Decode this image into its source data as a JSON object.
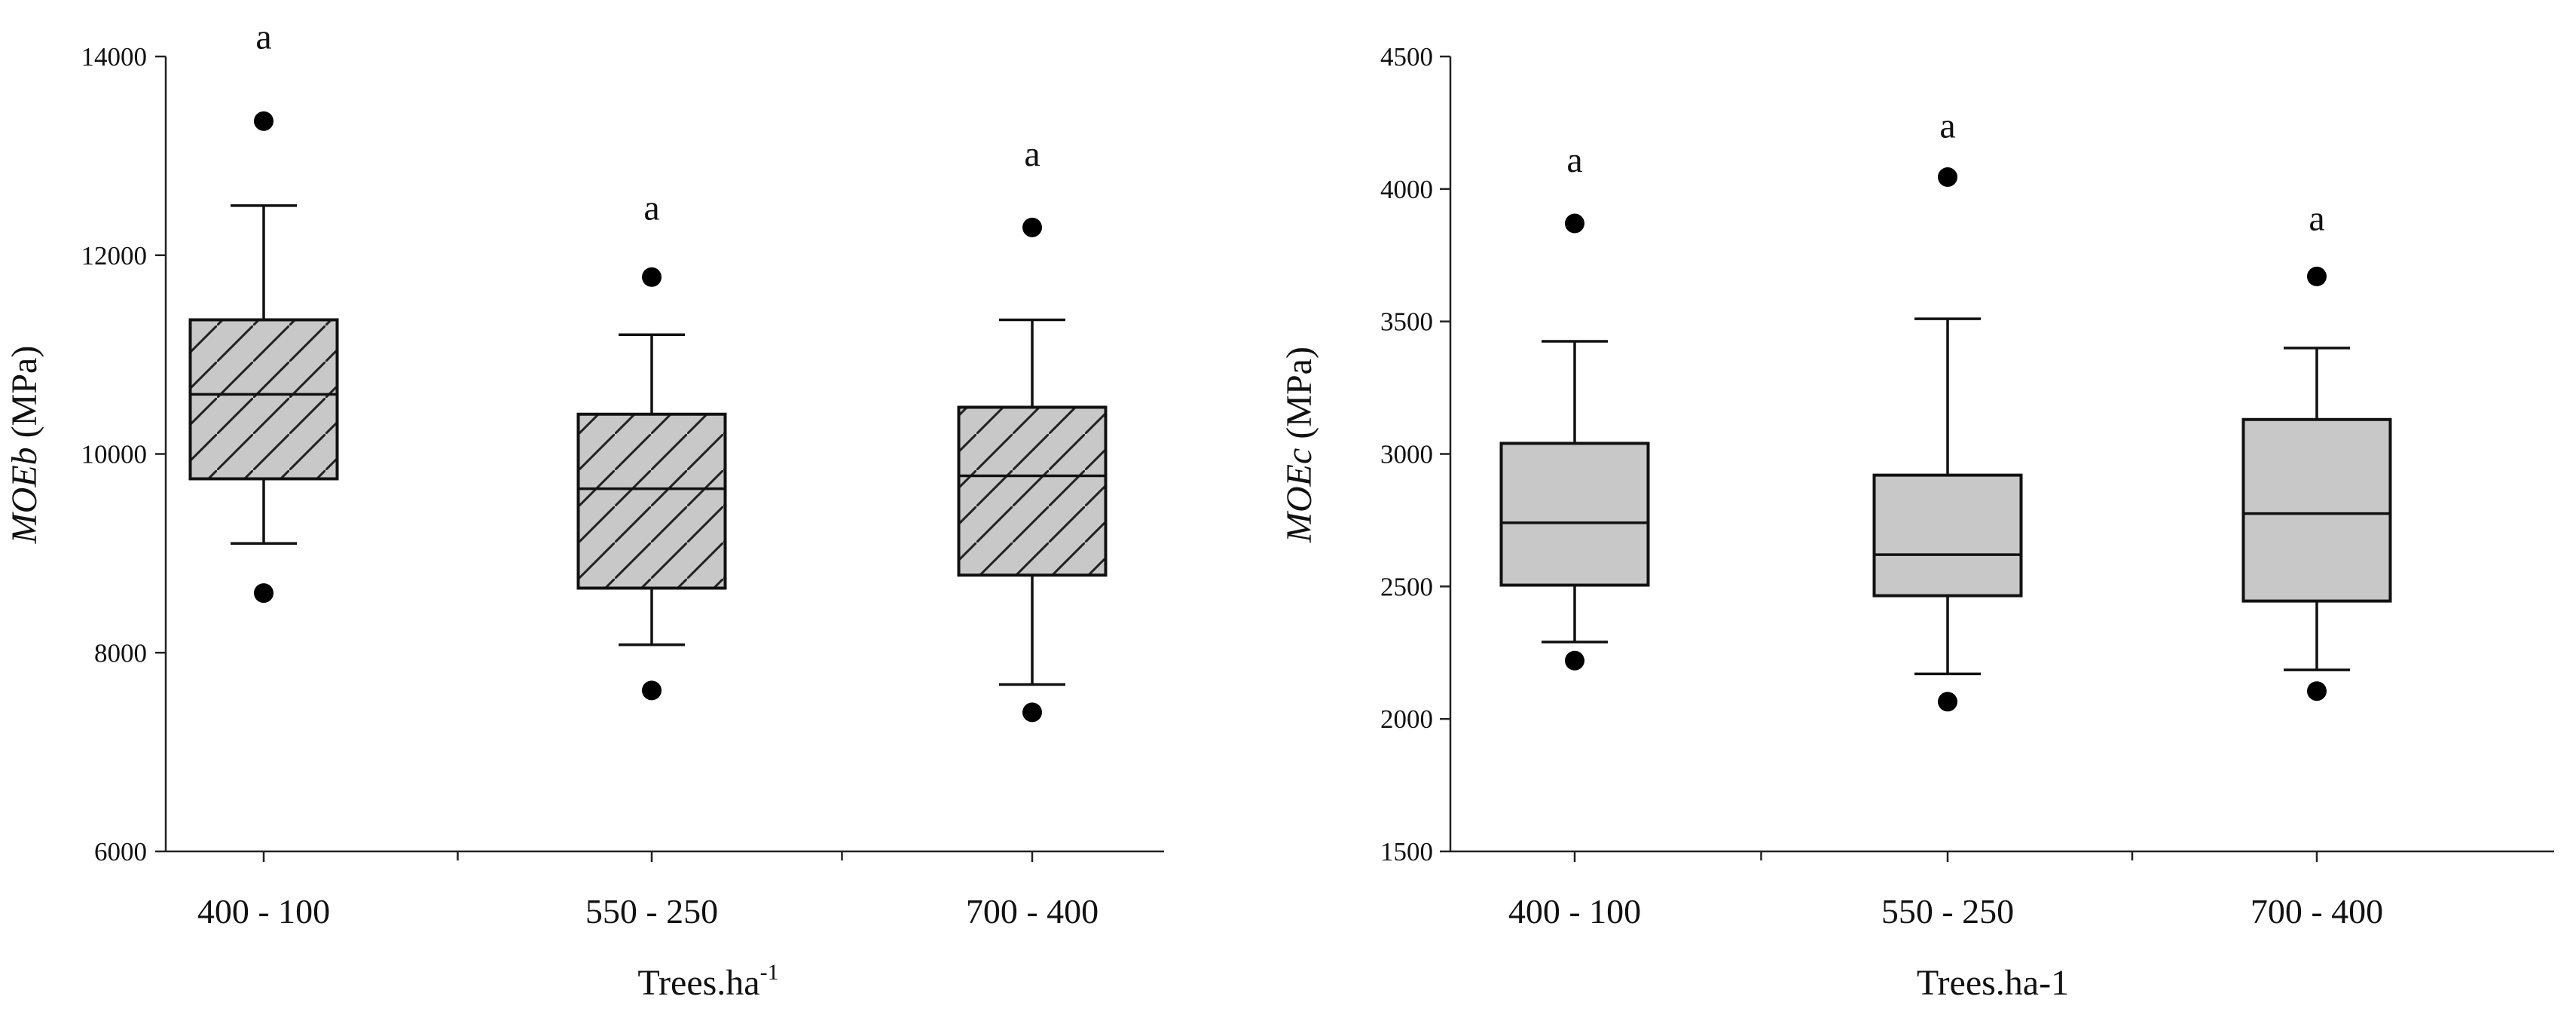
{
  "chart_data": [
    {
      "type": "box",
      "ylabel_italic": "MOEb",
      "ylabel_unit": " (MPa)",
      "xlabel_main": "Trees.ha",
      "xlabel_sup": "-1",
      "ylim": [
        6000,
        14000
      ],
      "yticks": [
        6000,
        8000,
        10000,
        12000,
        14000
      ],
      "categories": [
        "400 - 100",
        "550 - 250",
        "700 - 400"
      ],
      "fill_color": "#c8c8c8",
      "hatched": true,
      "boxes": [
        {
          "category": "400 - 100",
          "q1": 9750,
          "median": 10600,
          "q3": 11350,
          "whisker_low": 9100,
          "whisker_high": 12500,
          "outliers": [
            8600,
            13350
          ],
          "letter": "a",
          "letter_y": 14200
        },
        {
          "category": "550 - 250",
          "q1": 8650,
          "median": 9650,
          "q3": 10400,
          "whisker_low": 8080,
          "whisker_high": 11200,
          "outliers": [
            7620,
            11780
          ],
          "letter": "a",
          "letter_y": 12480
        },
        {
          "category": "700 - 400",
          "q1": 8780,
          "median": 9780,
          "q3": 10470,
          "whisker_low": 7680,
          "whisker_high": 11350,
          "outliers": [
            7400,
            12280
          ],
          "letter": "a",
          "letter_y": 13020
        }
      ]
    },
    {
      "type": "box",
      "ylabel_italic": "MOEc",
      "ylabel_unit": " (MPa)",
      "xlabel_main": "Trees.ha-1",
      "xlabel_sup": "",
      "ylim": [
        1500,
        4500
      ],
      "yticks": [
        1500,
        2000,
        2500,
        3000,
        3500,
        4000,
        4500
      ],
      "categories": [
        "400 - 100",
        "550 - 250",
        "700 - 400"
      ],
      "fill_color": "#c8c8c8",
      "hatched": false,
      "boxes": [
        {
          "category": "400 - 100",
          "q1": 2505,
          "median": 2740,
          "q3": 3040,
          "whisker_low": 2290,
          "whisker_high": 3425,
          "outliers": [
            2220,
            3870
          ],
          "letter": "a",
          "letter_y": 4110
        },
        {
          "category": "550 - 250",
          "q1": 2465,
          "median": 2620,
          "q3": 2920,
          "whisker_low": 2170,
          "whisker_high": 3510,
          "outliers": [
            2065,
            4045
          ],
          "letter": "a",
          "letter_y": 4240
        },
        {
          "category": "700 - 400",
          "q1": 2445,
          "median": 2775,
          "q3": 3130,
          "whisker_low": 2185,
          "whisker_high": 3400,
          "outliers": [
            2105,
            3670
          ],
          "letter": "a",
          "letter_y": 3890
        }
      ]
    }
  ]
}
